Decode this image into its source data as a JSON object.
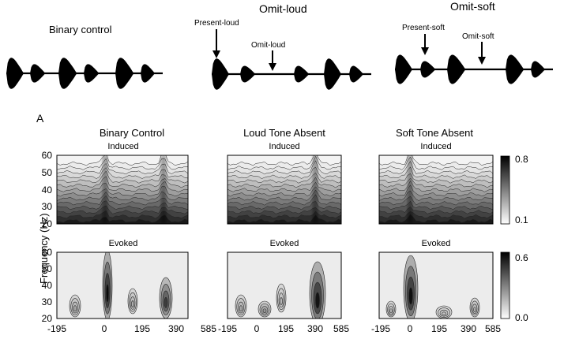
{
  "waveform_row": {
    "panels": [
      {
        "title": "Binary control",
        "annotations": []
      },
      {
        "title": "Omit-loud",
        "annotations": [
          "Present-loud",
          "Omit-loud"
        ]
      },
      {
        "title": "Omit-soft",
        "annotations": [
          "Present-soft",
          "Omit-soft"
        ]
      }
    ]
  },
  "panel_label": "A",
  "spectrogram_grid": {
    "y_axis_label": "Frequency (Hz)",
    "y_ticks": [
      "20",
      "30",
      "40",
      "50",
      "60"
    ],
    "x_ticks": [
      "-195",
      "0",
      "195",
      "390",
      "585"
    ],
    "columns": [
      {
        "title": "Binary Control",
        "induced_label": "Induced",
        "evoked_label": "Evoked"
      },
      {
        "title": "Loud Tone Absent",
        "induced_label": "Induced",
        "evoked_label": "Evoked"
      },
      {
        "title": "Soft Tone Absent",
        "induced_label": "Induced",
        "evoked_label": "Evoked"
      }
    ],
    "colorbars": [
      {
        "max": "0.8",
        "min": "0.1"
      },
      {
        "max": "0.6",
        "min": "0.0"
      }
    ]
  },
  "colors": {
    "ink": "#000000",
    "background": "#ffffff"
  }
}
